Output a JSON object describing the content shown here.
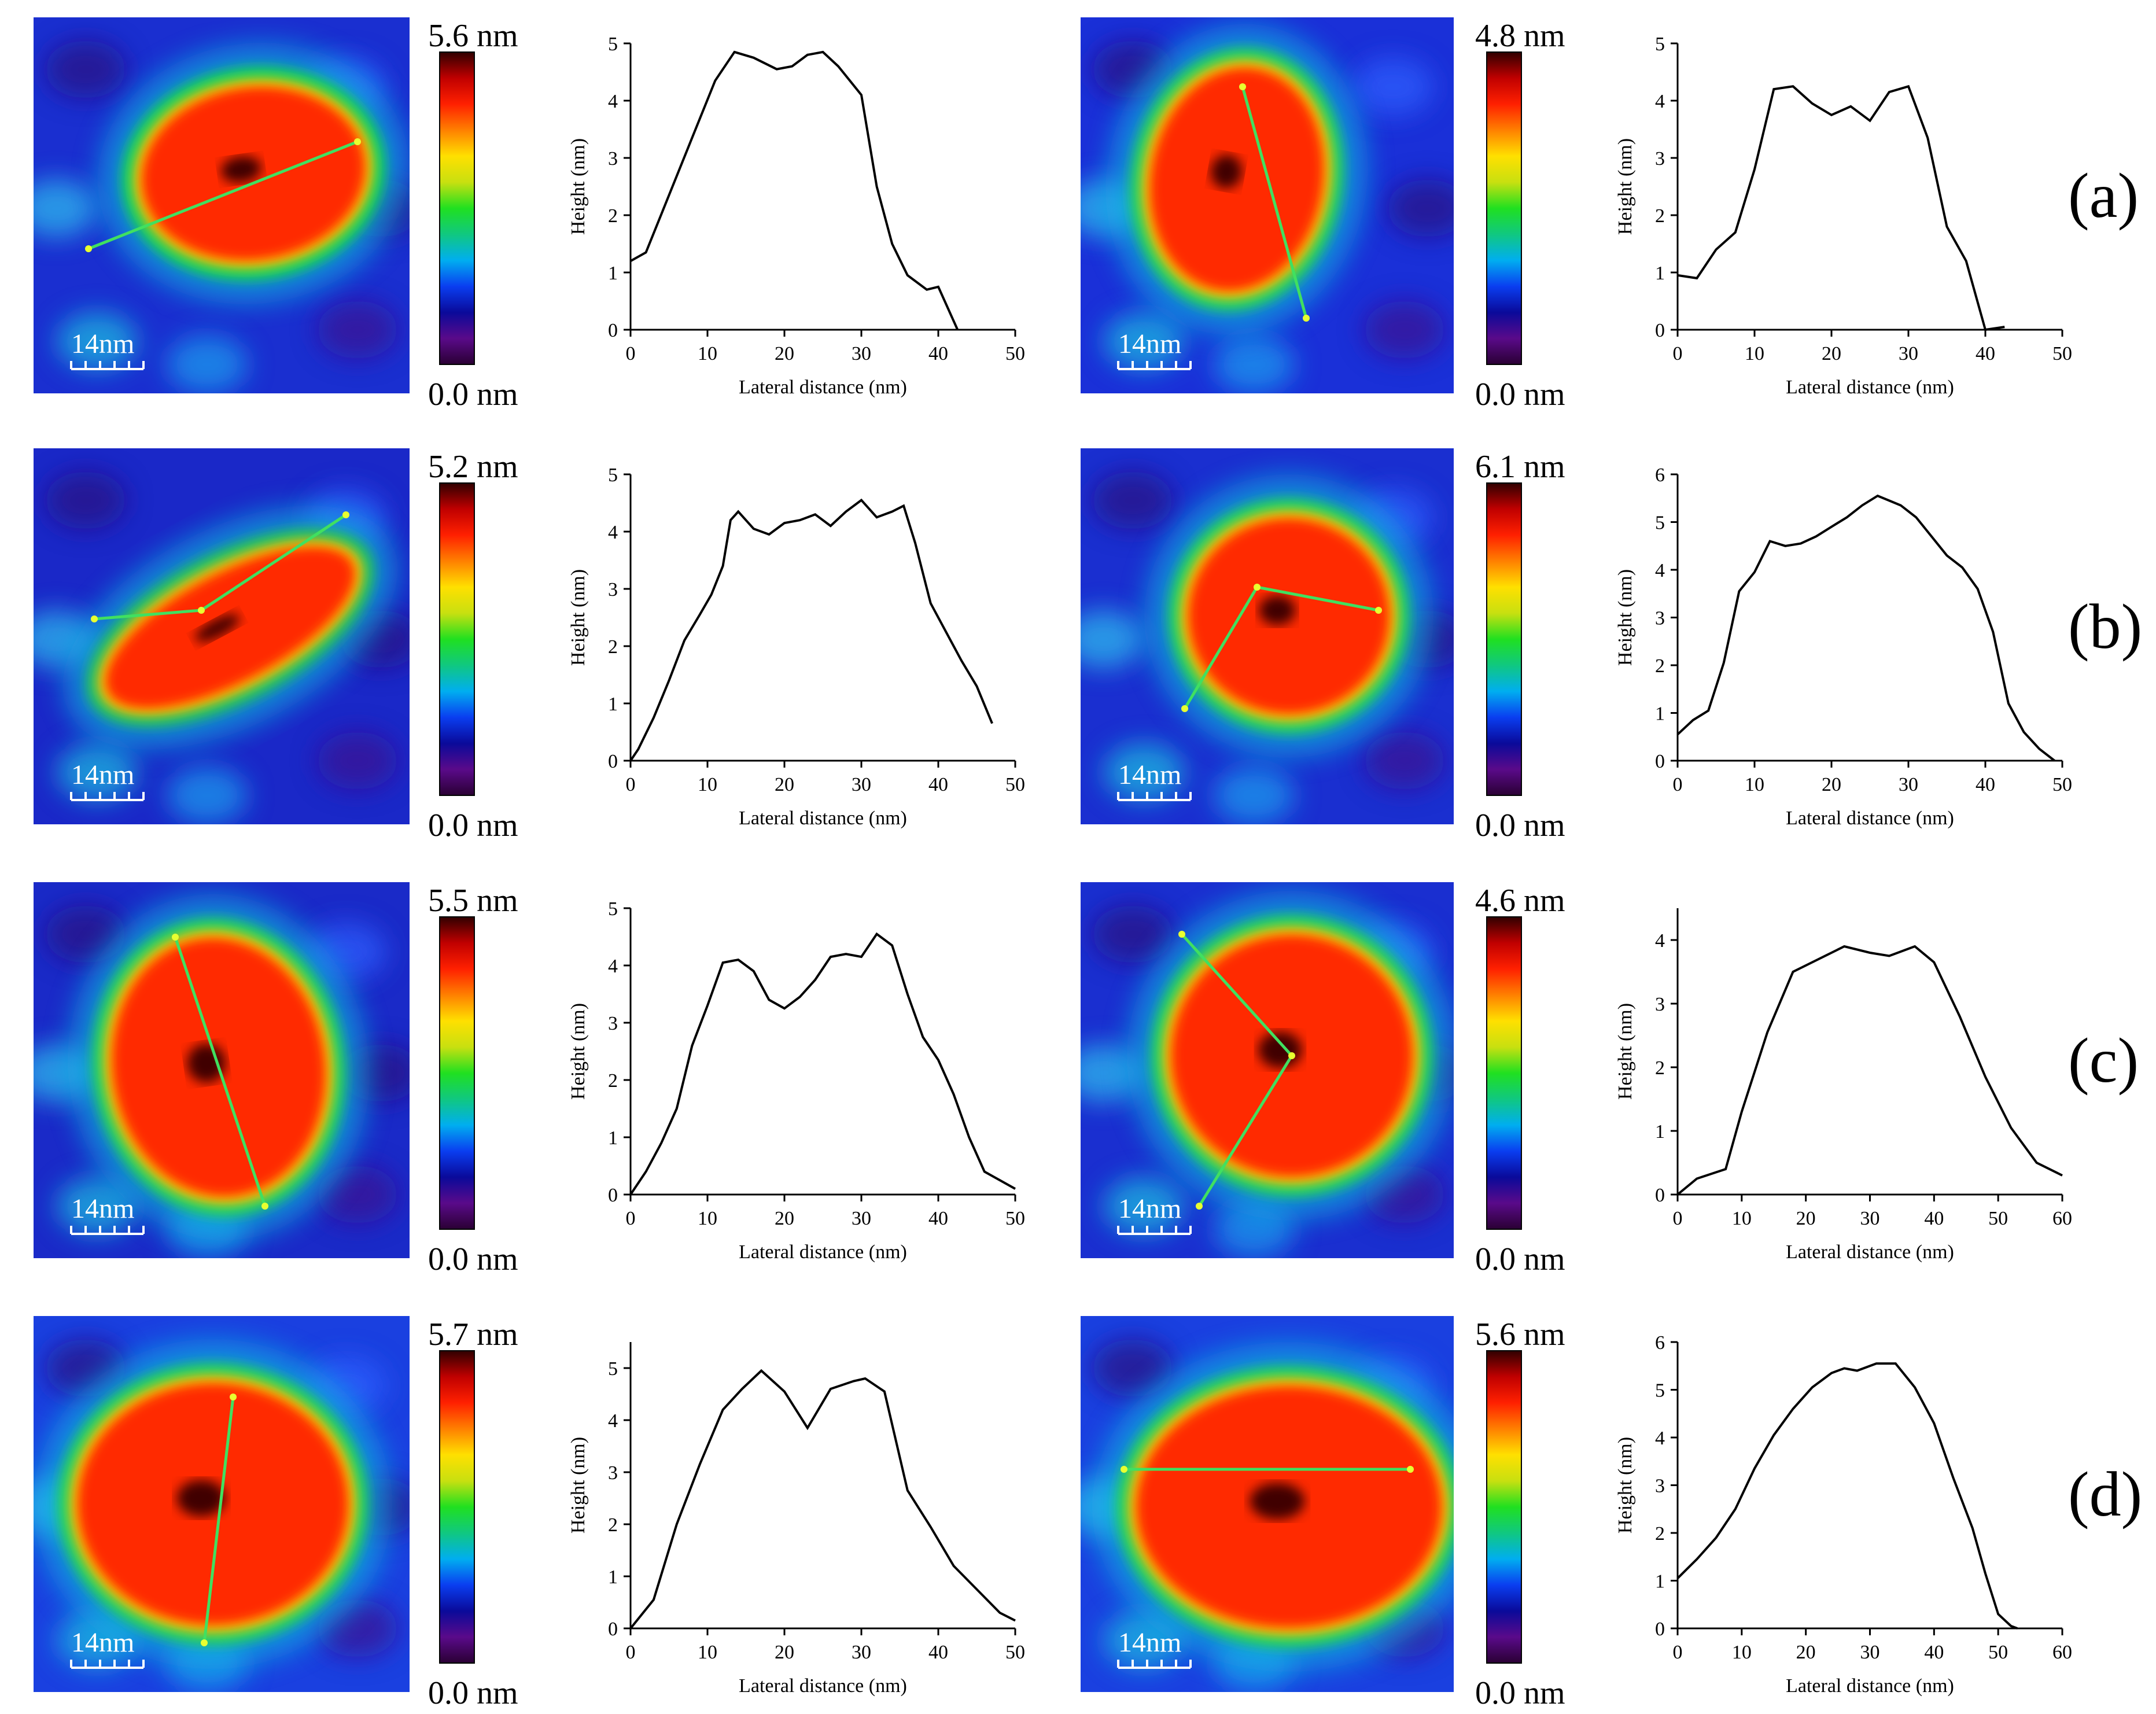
{
  "row_labels": [
    "(a)",
    "(b)",
    "(c)",
    "(d)"
  ],
  "scale_bar_label": "14nm",
  "colorbar_stops": [
    "#2a0033",
    "#5a0a8a",
    "#0a0a9a",
    "#0a3ef0",
    "#00aef0",
    "#10c880",
    "#20e020",
    "#c8e010",
    "#ffe000",
    "#ff8000",
    "#ff2000",
    "#c00000",
    "#300000"
  ],
  "panels": [
    {
      "max_label": "5.6 nm",
      "min_label": "0.0 nm",
      "colors": {
        "bg": "#1a2fd0",
        "halo": "#18d05a",
        "core": "#ff2a00"
      }
    },
    {
      "max_label": "4.8 nm",
      "min_label": "0.0 nm",
      "colors": {
        "bg": "#1a30d8",
        "halo": "#20d060",
        "core": "#ff2a00"
      }
    },
    {
      "max_label": "5.2 nm",
      "min_label": "0.0 nm",
      "colors": {
        "bg": "#1a28c8",
        "halo": "#20c060",
        "core": "#ff2a00"
      }
    },
    {
      "max_label": "6.1 nm",
      "min_label": "0.0 nm",
      "colors": {
        "bg": "#1a2fd0",
        "halo": "#20d060",
        "core": "#ff2a00"
      }
    },
    {
      "max_label": "5.5 nm",
      "min_label": "0.0 nm",
      "colors": {
        "bg": "#1a2ac8",
        "halo": "#20d060",
        "core": "#ff2a00"
      }
    },
    {
      "max_label": "4.6 nm",
      "min_label": "0.0 nm",
      "colors": {
        "bg": "#1a2fd0",
        "halo": "#20d060",
        "core": "#ff2a00"
      }
    },
    {
      "max_label": "5.7 nm",
      "min_label": "0.0 nm",
      "colors": {
        "bg": "#1a40e0",
        "halo": "#20d060",
        "core": "#ff2a00"
      }
    },
    {
      "max_label": "5.6 nm",
      "min_label": "0.0 nm",
      "colors": {
        "bg": "#1a40e0",
        "halo": "#20d060",
        "core": "#ff2a00"
      }
    }
  ],
  "chart_data": [
    {
      "type": "line",
      "xlabel": "Lateral distance (nm)",
      "ylabel": "Height (nm)",
      "xlim": [
        0,
        50
      ],
      "ylim": [
        0,
        5
      ],
      "xticks": [
        0,
        10,
        20,
        30,
        40,
        50
      ],
      "yticks": [
        0,
        1,
        2,
        3,
        4,
        5
      ],
      "x": [
        0,
        2,
        5,
        8,
        11,
        13.5,
        16,
        19,
        21,
        23,
        25,
        27,
        30,
        32,
        34,
        36,
        38.5,
        40,
        42.5
      ],
      "y": [
        1.2,
        1.35,
        2.35,
        3.35,
        4.35,
        4.85,
        4.75,
        4.55,
        4.6,
        4.8,
        4.85,
        4.6,
        4.1,
        2.5,
        1.5,
        0.95,
        0.7,
        0.75,
        0
      ]
    },
    {
      "type": "line",
      "xlabel": "Lateral distance (nm)",
      "ylabel": "Height (nm)",
      "xlim": [
        0,
        50
      ],
      "ylim": [
        0,
        5
      ],
      "xticks": [
        0,
        10,
        20,
        30,
        40,
        50
      ],
      "yticks": [
        0,
        1,
        2,
        3,
        4,
        5
      ],
      "x": [
        0,
        2.5,
        5,
        7.5,
        10,
        12.5,
        15,
        17.5,
        20,
        22.5,
        25,
        27.5,
        30,
        32.5,
        35,
        37.5,
        40,
        42.5
      ],
      "y": [
        0.95,
        0.9,
        1.4,
        1.7,
        2.8,
        4.2,
        4.25,
        3.95,
        3.75,
        3.9,
        3.65,
        4.15,
        4.25,
        3.35,
        1.8,
        1.2,
        0,
        0.05
      ]
    },
    {
      "type": "line",
      "xlabel": "Lateral distance (nm)",
      "ylabel": "Height (nm)",
      "xlim": [
        0,
        50
      ],
      "ylim": [
        0,
        5
      ],
      "xticks": [
        0,
        10,
        20,
        30,
        40,
        50
      ],
      "yticks": [
        0,
        1,
        2,
        3,
        4,
        5
      ],
      "x": [
        0,
        1,
        3,
        5,
        7,
        9,
        10.5,
        12,
        13,
        14,
        16,
        18,
        20,
        22,
        24,
        26,
        28,
        30,
        32,
        34,
        35.5,
        37,
        39,
        41,
        43,
        45,
        47
      ],
      "y": [
        0,
        0.2,
        0.75,
        1.4,
        2.1,
        2.55,
        2.9,
        3.4,
        4.2,
        4.35,
        4.05,
        3.95,
        4.15,
        4.2,
        4.3,
        4.1,
        4.35,
        4.55,
        4.25,
        4.35,
        4.45,
        3.8,
        2.75,
        2.25,
        1.75,
        1.3,
        0.65
      ]
    },
    {
      "type": "line",
      "xlabel": "Lateral distance (nm)",
      "ylabel": "Height (nm)",
      "xlim": [
        0,
        50
      ],
      "ylim": [
        0,
        6
      ],
      "xticks": [
        0,
        10,
        20,
        30,
        40,
        50
      ],
      "yticks": [
        0,
        1,
        2,
        3,
        4,
        5,
        6
      ],
      "x": [
        0,
        2,
        4,
        6,
        8,
        10,
        12,
        14,
        16,
        18,
        20,
        22,
        24,
        26,
        27.5,
        29,
        31,
        33,
        35,
        37,
        39,
        41,
        43,
        45,
        47,
        49
      ],
      "y": [
        0.55,
        0.85,
        1.05,
        2.05,
        3.55,
        3.95,
        4.6,
        4.5,
        4.55,
        4.7,
        4.9,
        5.1,
        5.35,
        5.55,
        5.45,
        5.35,
        5.1,
        4.7,
        4.3,
        4.05,
        3.6,
        2.7,
        1.2,
        0.6,
        0.25,
        0
      ]
    },
    {
      "type": "line",
      "xlabel": "Lateral distance (nm)",
      "ylabel": "Height (nm)",
      "xlim": [
        0,
        50
      ],
      "ylim": [
        0,
        5
      ],
      "xticks": [
        0,
        10,
        20,
        30,
        40,
        50
      ],
      "yticks": [
        0,
        1,
        2,
        3,
        4,
        5
      ],
      "x": [
        0,
        2,
        4,
        6,
        8,
        10,
        12,
        14,
        16,
        18,
        20,
        22,
        24,
        26,
        28,
        30,
        32,
        34,
        36,
        38,
        40,
        42,
        44,
        46,
        48,
        50
      ],
      "y": [
        0,
        0.4,
        0.9,
        1.5,
        2.6,
        3.3,
        4.05,
        4.1,
        3.9,
        3.4,
        3.25,
        3.45,
        3.75,
        4.15,
        4.2,
        4.15,
        4.55,
        4.35,
        3.5,
        2.75,
        2.35,
        1.75,
        1.0,
        0.4,
        0.25,
        0.1
      ]
    },
    {
      "type": "line",
      "xlabel": "Lateral distance (nm)",
      "ylabel": "Height (nm)",
      "xlim": [
        0,
        60
      ],
      "ylim": [
        0,
        4.5
      ],
      "xticks": [
        0,
        10,
        20,
        30,
        40,
        50,
        60
      ],
      "yticks": [
        0,
        1,
        2,
        3,
        4
      ],
      "x": [
        0,
        3,
        6,
        7.5,
        10,
        14,
        18,
        22,
        26,
        30,
        33,
        37,
        40,
        44,
        48,
        52,
        56,
        60
      ],
      "y": [
        0,
        0.25,
        0.35,
        0.4,
        1.3,
        2.55,
        3.5,
        3.7,
        3.9,
        3.8,
        3.75,
        3.9,
        3.65,
        2.8,
        1.85,
        1.05,
        0.5,
        0.3
      ]
    },
    {
      "type": "line",
      "xlabel": "Lateral distance (nm)",
      "ylabel": "Height (nm)",
      "xlim": [
        0,
        50
      ],
      "ylim": [
        0,
        5.5
      ],
      "xticks": [
        0,
        10,
        20,
        30,
        40,
        50
      ],
      "yticks": [
        0,
        1,
        2,
        3,
        4,
        5
      ],
      "x": [
        0,
        3,
        6,
        9,
        12,
        14.5,
        17,
        20,
        23,
        26,
        29,
        30.5,
        33,
        36,
        39,
        42,
        45,
        48,
        50
      ],
      "y": [
        0,
        0.55,
        2.0,
        3.15,
        4.2,
        4.6,
        4.95,
        4.55,
        3.85,
        4.6,
        4.75,
        4.8,
        4.55,
        2.65,
        1.95,
        1.2,
        0.75,
        0.3,
        0.15
      ]
    },
    {
      "type": "line",
      "xlabel": "Lateral distance (nm)",
      "ylabel": "Height (nm)",
      "xlim": [
        0,
        60
      ],
      "ylim": [
        0,
        6
      ],
      "xticks": [
        0,
        10,
        20,
        30,
        40,
        50,
        60
      ],
      "yticks": [
        0,
        1,
        2,
        3,
        4,
        5,
        6
      ],
      "x": [
        0,
        3,
        6,
        9,
        12,
        15,
        18,
        21,
        24,
        26,
        28,
        31,
        34,
        37,
        40,
        43,
        46,
        48,
        50,
        52,
        53
      ],
      "y": [
        1.05,
        1.45,
        1.9,
        2.5,
        3.35,
        4.05,
        4.6,
        5.05,
        5.35,
        5.45,
        5.4,
        5.55,
        5.55,
        5.05,
        4.3,
        3.15,
        2.1,
        1.15,
        0.3,
        0.05,
        0
      ]
    }
  ]
}
